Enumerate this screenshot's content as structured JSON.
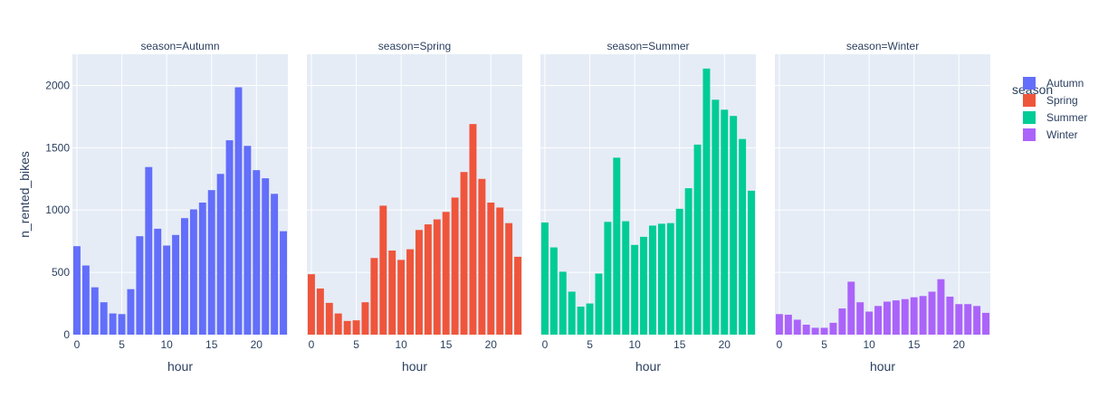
{
  "chart_data": {
    "type": "bar",
    "facet_by": "season",
    "x": [
      0,
      1,
      2,
      3,
      4,
      5,
      6,
      7,
      8,
      9,
      10,
      11,
      12,
      13,
      14,
      15,
      16,
      17,
      18,
      19,
      20,
      21,
      22,
      23
    ],
    "x_tick_labels": [
      "0",
      "5",
      "10",
      "15",
      "20"
    ],
    "x_ticks": [
      0,
      5,
      10,
      15,
      20
    ],
    "xlabel": "hour",
    "ylabel": "n_rented_bikes",
    "ylim": [
      0,
      2250
    ],
    "y_ticks": [
      0,
      500,
      1000,
      1500,
      2000
    ],
    "y_tick_labels": [
      "0",
      "500",
      "1000",
      "1500",
      "2000"
    ],
    "grid": true,
    "legend_title": "season",
    "legend_position": "right",
    "series": [
      {
        "name": "Autumn",
        "facet_title": "season=Autumn",
        "color": "#636efa",
        "values": [
          710,
          555,
          380,
          260,
          170,
          165,
          365,
          790,
          1345,
          850,
          715,
          800,
          935,
          1005,
          1060,
          1160,
          1290,
          1560,
          1985,
          1515,
          1320,
          1255,
          1130,
          830
        ]
      },
      {
        "name": "Spring",
        "facet_title": "season=Spring",
        "color": "#EF553B",
        "values": [
          485,
          370,
          255,
          170,
          110,
          115,
          260,
          615,
          1035,
          675,
          600,
          685,
          840,
          885,
          925,
          985,
          1100,
          1305,
          1690,
          1250,
          1060,
          1020,
          895,
          625
        ]
      },
      {
        "name": "Summer",
        "facet_title": "season=Summer",
        "color": "#00cc96",
        "values": [
          900,
          700,
          505,
          345,
          225,
          250,
          490,
          905,
          1420,
          910,
          720,
          785,
          875,
          890,
          895,
          1010,
          1175,
          1525,
          2135,
          1885,
          1805,
          1755,
          1570,
          1155
        ]
      },
      {
        "name": "Winter",
        "facet_title": "season=Winter",
        "color": "#ab63fa",
        "values": [
          165,
          160,
          120,
          80,
          55,
          55,
          95,
          210,
          425,
          260,
          185,
          230,
          265,
          275,
          285,
          300,
          310,
          345,
          445,
          305,
          245,
          245,
          230,
          175
        ]
      }
    ]
  }
}
